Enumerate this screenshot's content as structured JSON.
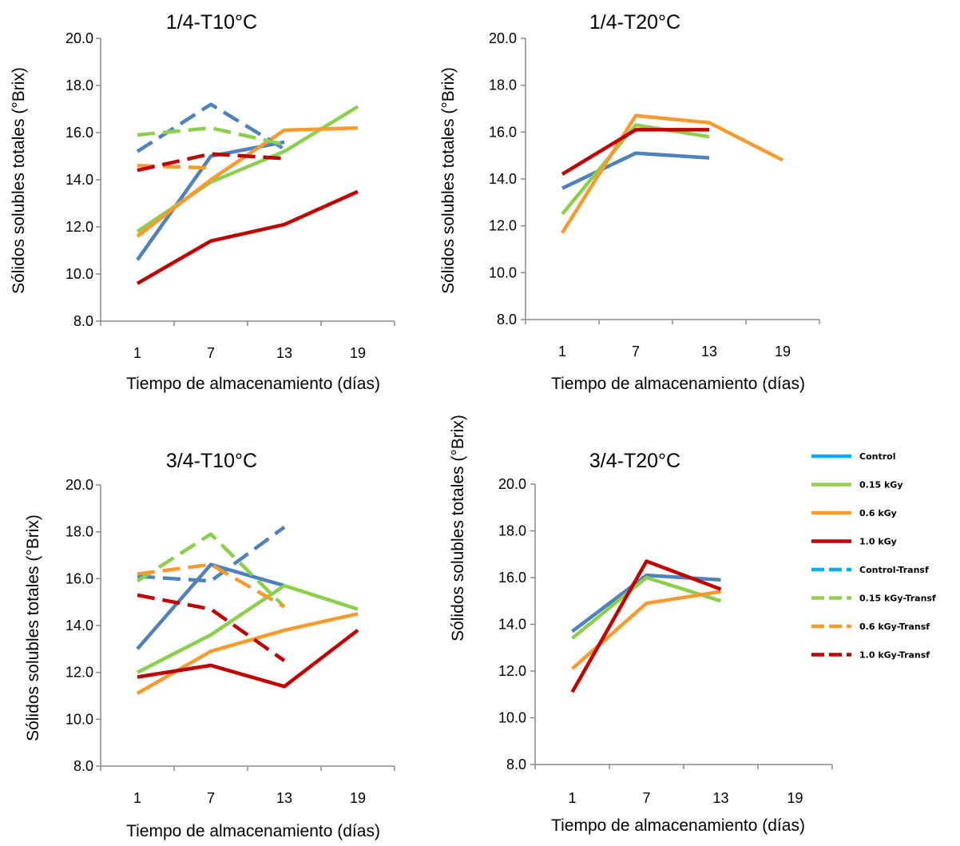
{
  "colors": {
    "Control": "#4f81bd",
    "0.15 kGy": "#8ccf4d",
    "0.6 kGy": "#f79b2e",
    "1.0 kGy": "#c00000"
  },
  "legend": {
    "items": [
      {
        "label": "Control",
        "color": "#00b0f0",
        "dashed": false
      },
      {
        "label": "0.15 kGy",
        "color": "#92d050",
        "dashed": false
      },
      {
        "label": "0.6 kGy",
        "color": "#f79b2e",
        "dashed": false
      },
      {
        "label": "1.0 kGy",
        "color": "#c00000",
        "dashed": false
      },
      {
        "label": "Control-Transf",
        "color": "#00b0f0",
        "dashed": true
      },
      {
        "label": "0.15 kGy-Transf",
        "color": "#92d050",
        "dashed": true
      },
      {
        "label": "0.6 kGy-Transf",
        "color": "#f79b2e",
        "dashed": true
      },
      {
        "label": "1.0 kGy-Transf",
        "color": "#c00000",
        "dashed": true
      }
    ]
  },
  "chart_data": [
    {
      "type": "line",
      "title": "1/4-T10°C",
      "xlabel": "Tiempo de almacenamiento (días)",
      "ylabel": "Sólidos solubles totales  (°Brix)",
      "categories": [
        "1",
        "7",
        "13",
        "19"
      ],
      "ylim": [
        8.0,
        20.0
      ],
      "yticks": [
        "8.0",
        "10.0",
        "12.0",
        "14.0",
        "16.0",
        "18.0",
        "20.0"
      ],
      "series": [
        {
          "name": "Control",
          "dashed": false,
          "values": [
            10.6,
            15.0,
            15.6,
            null
          ]
        },
        {
          "name": "0.15 kGy",
          "dashed": false,
          "values": [
            11.8,
            13.9,
            15.2,
            17.1
          ]
        },
        {
          "name": "0.6 kGy",
          "dashed": false,
          "values": [
            11.6,
            14.0,
            16.1,
            16.2
          ]
        },
        {
          "name": "1.0 kGy",
          "dashed": false,
          "values": [
            9.6,
            11.4,
            12.1,
            13.5
          ]
        },
        {
          "name": "Control-Transf",
          "dashed": true,
          "values": [
            15.2,
            17.2,
            15.3,
            null
          ]
        },
        {
          "name": "0.15 kGy-Transf",
          "dashed": true,
          "values": [
            15.9,
            16.2,
            15.5,
            null
          ]
        },
        {
          "name": "0.6 kGy-Transf",
          "dashed": true,
          "values": [
            14.6,
            14.5,
            null,
            null
          ]
        },
        {
          "name": "1.0 kGy-Transf",
          "dashed": true,
          "values": [
            14.4,
            15.1,
            14.9,
            null
          ]
        }
      ]
    },
    {
      "type": "line",
      "title": "1/4-T20°C",
      "xlabel": "Tiempo de almacenamiento (días)",
      "ylabel": "Sólidos solubles totales  (°Brix)",
      "categories": [
        "1",
        "7",
        "13",
        "19"
      ],
      "ylim": [
        8.0,
        20.0
      ],
      "yticks": [
        "8.0",
        "10.0",
        "12.0",
        "14.0",
        "16.0",
        "18.0",
        "20.0"
      ],
      "series": [
        {
          "name": "Control",
          "dashed": false,
          "values": [
            13.6,
            15.1,
            14.9,
            null
          ]
        },
        {
          "name": "0.15 kGy",
          "dashed": false,
          "values": [
            12.5,
            16.3,
            15.8,
            null
          ]
        },
        {
          "name": "0.6 kGy",
          "dashed": false,
          "values": [
            11.7,
            16.7,
            16.4,
            14.8
          ]
        },
        {
          "name": "1.0 kGy",
          "dashed": false,
          "values": [
            14.2,
            16.1,
            16.1,
            null
          ]
        }
      ]
    },
    {
      "type": "line",
      "title": "3/4-T10°C",
      "xlabel": "Tiempo de almacenamiento (días)",
      "ylabel": "Sólidos solubles totales  (°Brix)",
      "categories": [
        "1",
        "7",
        "13",
        "19"
      ],
      "ylim": [
        8.0,
        20.0
      ],
      "yticks": [
        "8.0",
        "10.0",
        "12.0",
        "14.0",
        "16.0",
        "18.0",
        "20.0"
      ],
      "series": [
        {
          "name": "Control",
          "dashed": false,
          "values": [
            13.0,
            16.6,
            15.7,
            null
          ]
        },
        {
          "name": "0.15 kGy",
          "dashed": false,
          "values": [
            12.0,
            13.6,
            15.7,
            14.7
          ]
        },
        {
          "name": "0.6 kGy",
          "dashed": false,
          "values": [
            11.1,
            12.9,
            13.8,
            14.5
          ]
        },
        {
          "name": "1.0 kGy",
          "dashed": false,
          "values": [
            11.8,
            12.3,
            11.4,
            13.8
          ]
        },
        {
          "name": "Control-Transf",
          "dashed": true,
          "values": [
            16.1,
            15.9,
            18.2,
            null
          ]
        },
        {
          "name": "0.15 kGy-Transf",
          "dashed": true,
          "values": [
            15.9,
            17.9,
            14.8,
            null
          ]
        },
        {
          "name": "0.6 kGy-Transf",
          "dashed": true,
          "values": [
            16.2,
            16.6,
            14.8,
            null
          ]
        },
        {
          "name": "1.0 kGy-Transf",
          "dashed": true,
          "values": [
            15.3,
            14.7,
            12.5,
            null
          ]
        }
      ]
    },
    {
      "type": "line",
      "title": "3/4-T20°C",
      "xlabel": "Tiempo de almacenamiento (días)",
      "ylabel": "Sólidos solubles totales (°Brix)",
      "categories": [
        "1",
        "7",
        "13",
        "19"
      ],
      "ylim": [
        8.0,
        20.0
      ],
      "yticks": [
        "8.0",
        "10.0",
        "12.0",
        "14.0",
        "16.0",
        "18.0",
        "20.0"
      ],
      "series": [
        {
          "name": "Control",
          "dashed": false,
          "values": [
            13.7,
            16.1,
            15.9,
            null
          ]
        },
        {
          "name": "0.15 kGy",
          "dashed": false,
          "values": [
            13.4,
            16.0,
            15.0,
            null
          ]
        },
        {
          "name": "0.6 kGy",
          "dashed": false,
          "values": [
            12.1,
            14.9,
            15.4,
            null
          ]
        },
        {
          "name": "1.0 kGy",
          "dashed": false,
          "values": [
            11.1,
            16.7,
            15.5,
            null
          ]
        }
      ]
    }
  ]
}
